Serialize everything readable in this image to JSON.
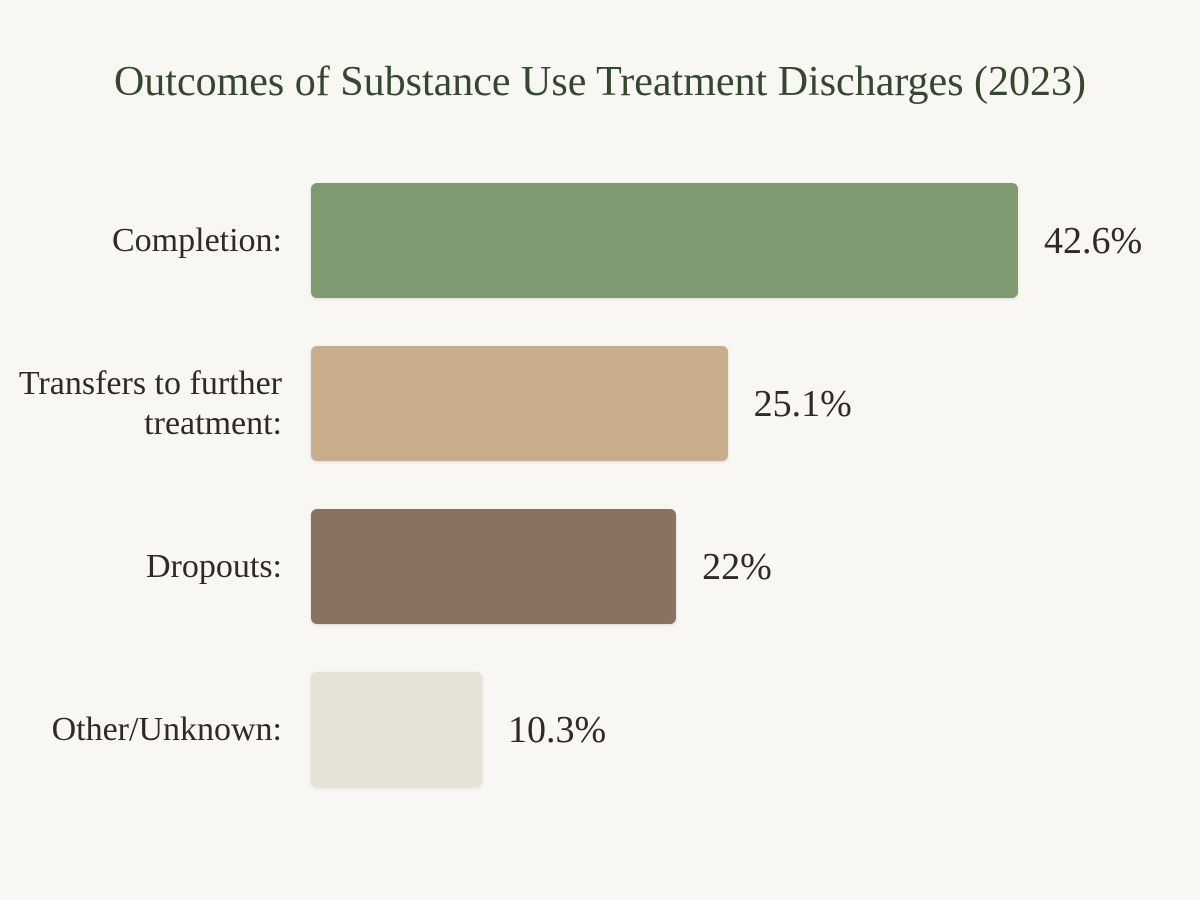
{
  "chart_data": {
    "type": "bar",
    "orientation": "horizontal",
    "title": "Outcomes of Substance Use Treatment Discharges (2023)",
    "categories": [
      "Completion:",
      "Transfers to further treatment:",
      "Dropouts:",
      "Other/Unknown:"
    ],
    "values": [
      42.6,
      25.1,
      22,
      10.3
    ],
    "value_labels": [
      "42.6%",
      "25.1%",
      "22%",
      "10.3%"
    ],
    "colors": [
      "#7f9a72",
      "#c8ad8a",
      "#8a7261",
      "#e7e2d8"
    ]
  }
}
